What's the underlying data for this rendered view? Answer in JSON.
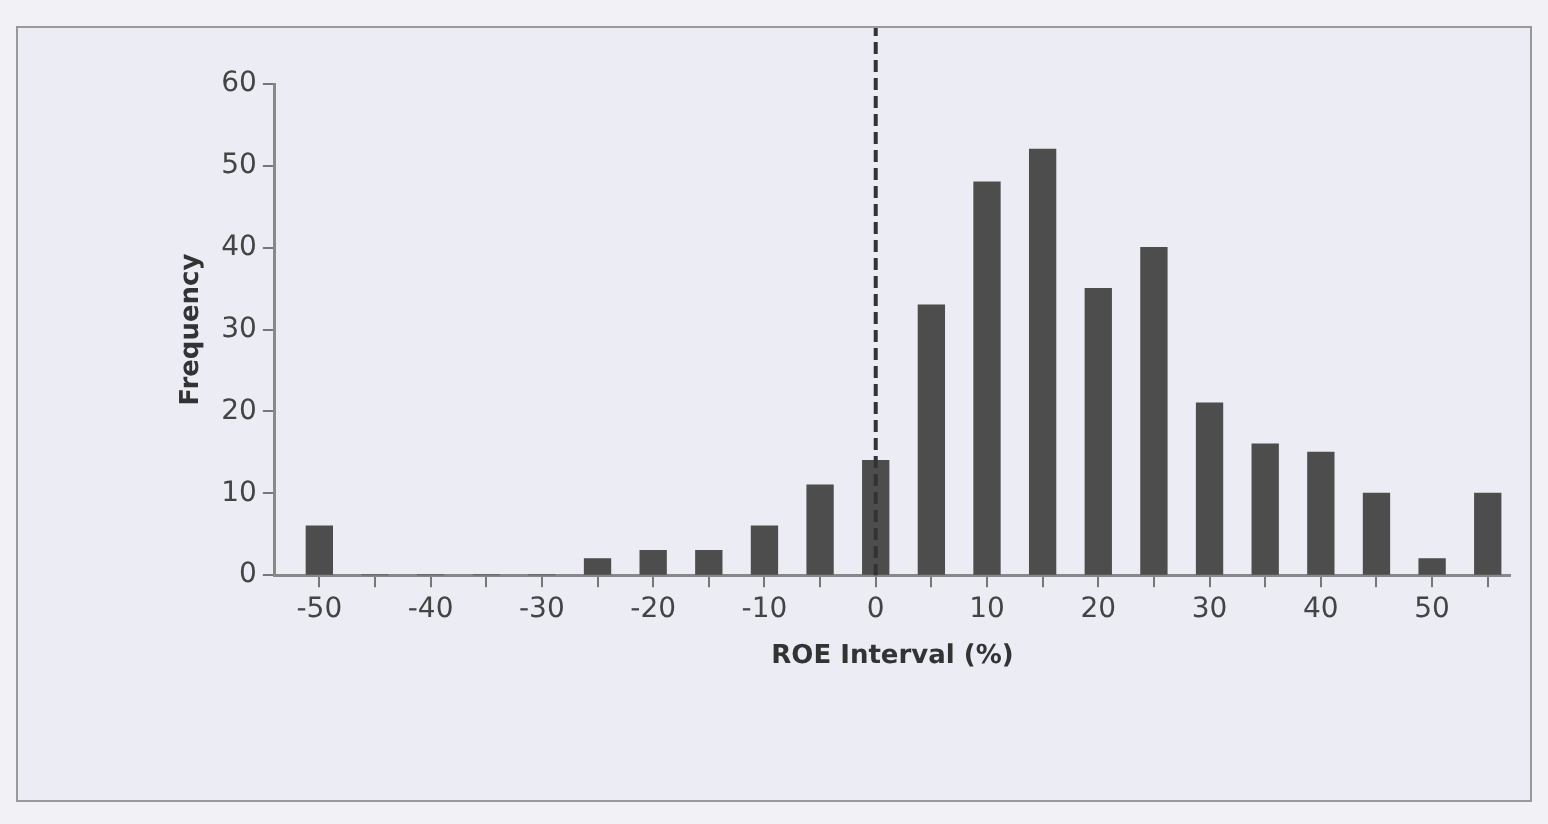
{
  "chart_data": {
    "type": "bar",
    "xlabel": "ROE Interval (%)",
    "ylabel": "Frequency",
    "x": [
      -50,
      -45,
      -40,
      -35,
      -30,
      -25,
      -20,
      -15,
      -10,
      -5,
      0,
      5,
      10,
      15,
      20,
      25,
      30,
      35,
      40,
      45,
      50,
      55
    ],
    "values": [
      6,
      0,
      0,
      0,
      0,
      2,
      3,
      3,
      6,
      11,
      14,
      33,
      48,
      52,
      35,
      40,
      21,
      16,
      15,
      10,
      2,
      10
    ],
    "color": "#4d4d4d",
    "xlim": [
      -54,
      57
    ],
    "xticks": [
      -50,
      {
        "value": -45,
        "label": null
      },
      -40,
      {
        "value": -35,
        "label": null
      },
      -30,
      {
        "value": -25,
        "label": null
      },
      -20,
      {
        "value": -15,
        "label": null
      },
      -10,
      {
        "value": -5,
        "label": null
      },
      0,
      {
        "value": 5,
        "label": null
      },
      10,
      {
        "value": 15,
        "label": null
      },
      20,
      {
        "value": 25,
        "label": null
      },
      30,
      {
        "value": 35,
        "label": null
      },
      40,
      {
        "value": 45,
        "label": null
      },
      50,
      {
        "value": 55,
        "label": null
      }
    ],
    "ylim": [
      0,
      60
    ],
    "yticks": [
      0,
      10,
      20,
      30,
      40,
      50,
      60
    ],
    "ref_lines": [
      {
        "axis": "x",
        "value": 0,
        "color": "#333333",
        "line_style": "dashed"
      }
    ],
    "grid": false,
    "legend": false
  }
}
